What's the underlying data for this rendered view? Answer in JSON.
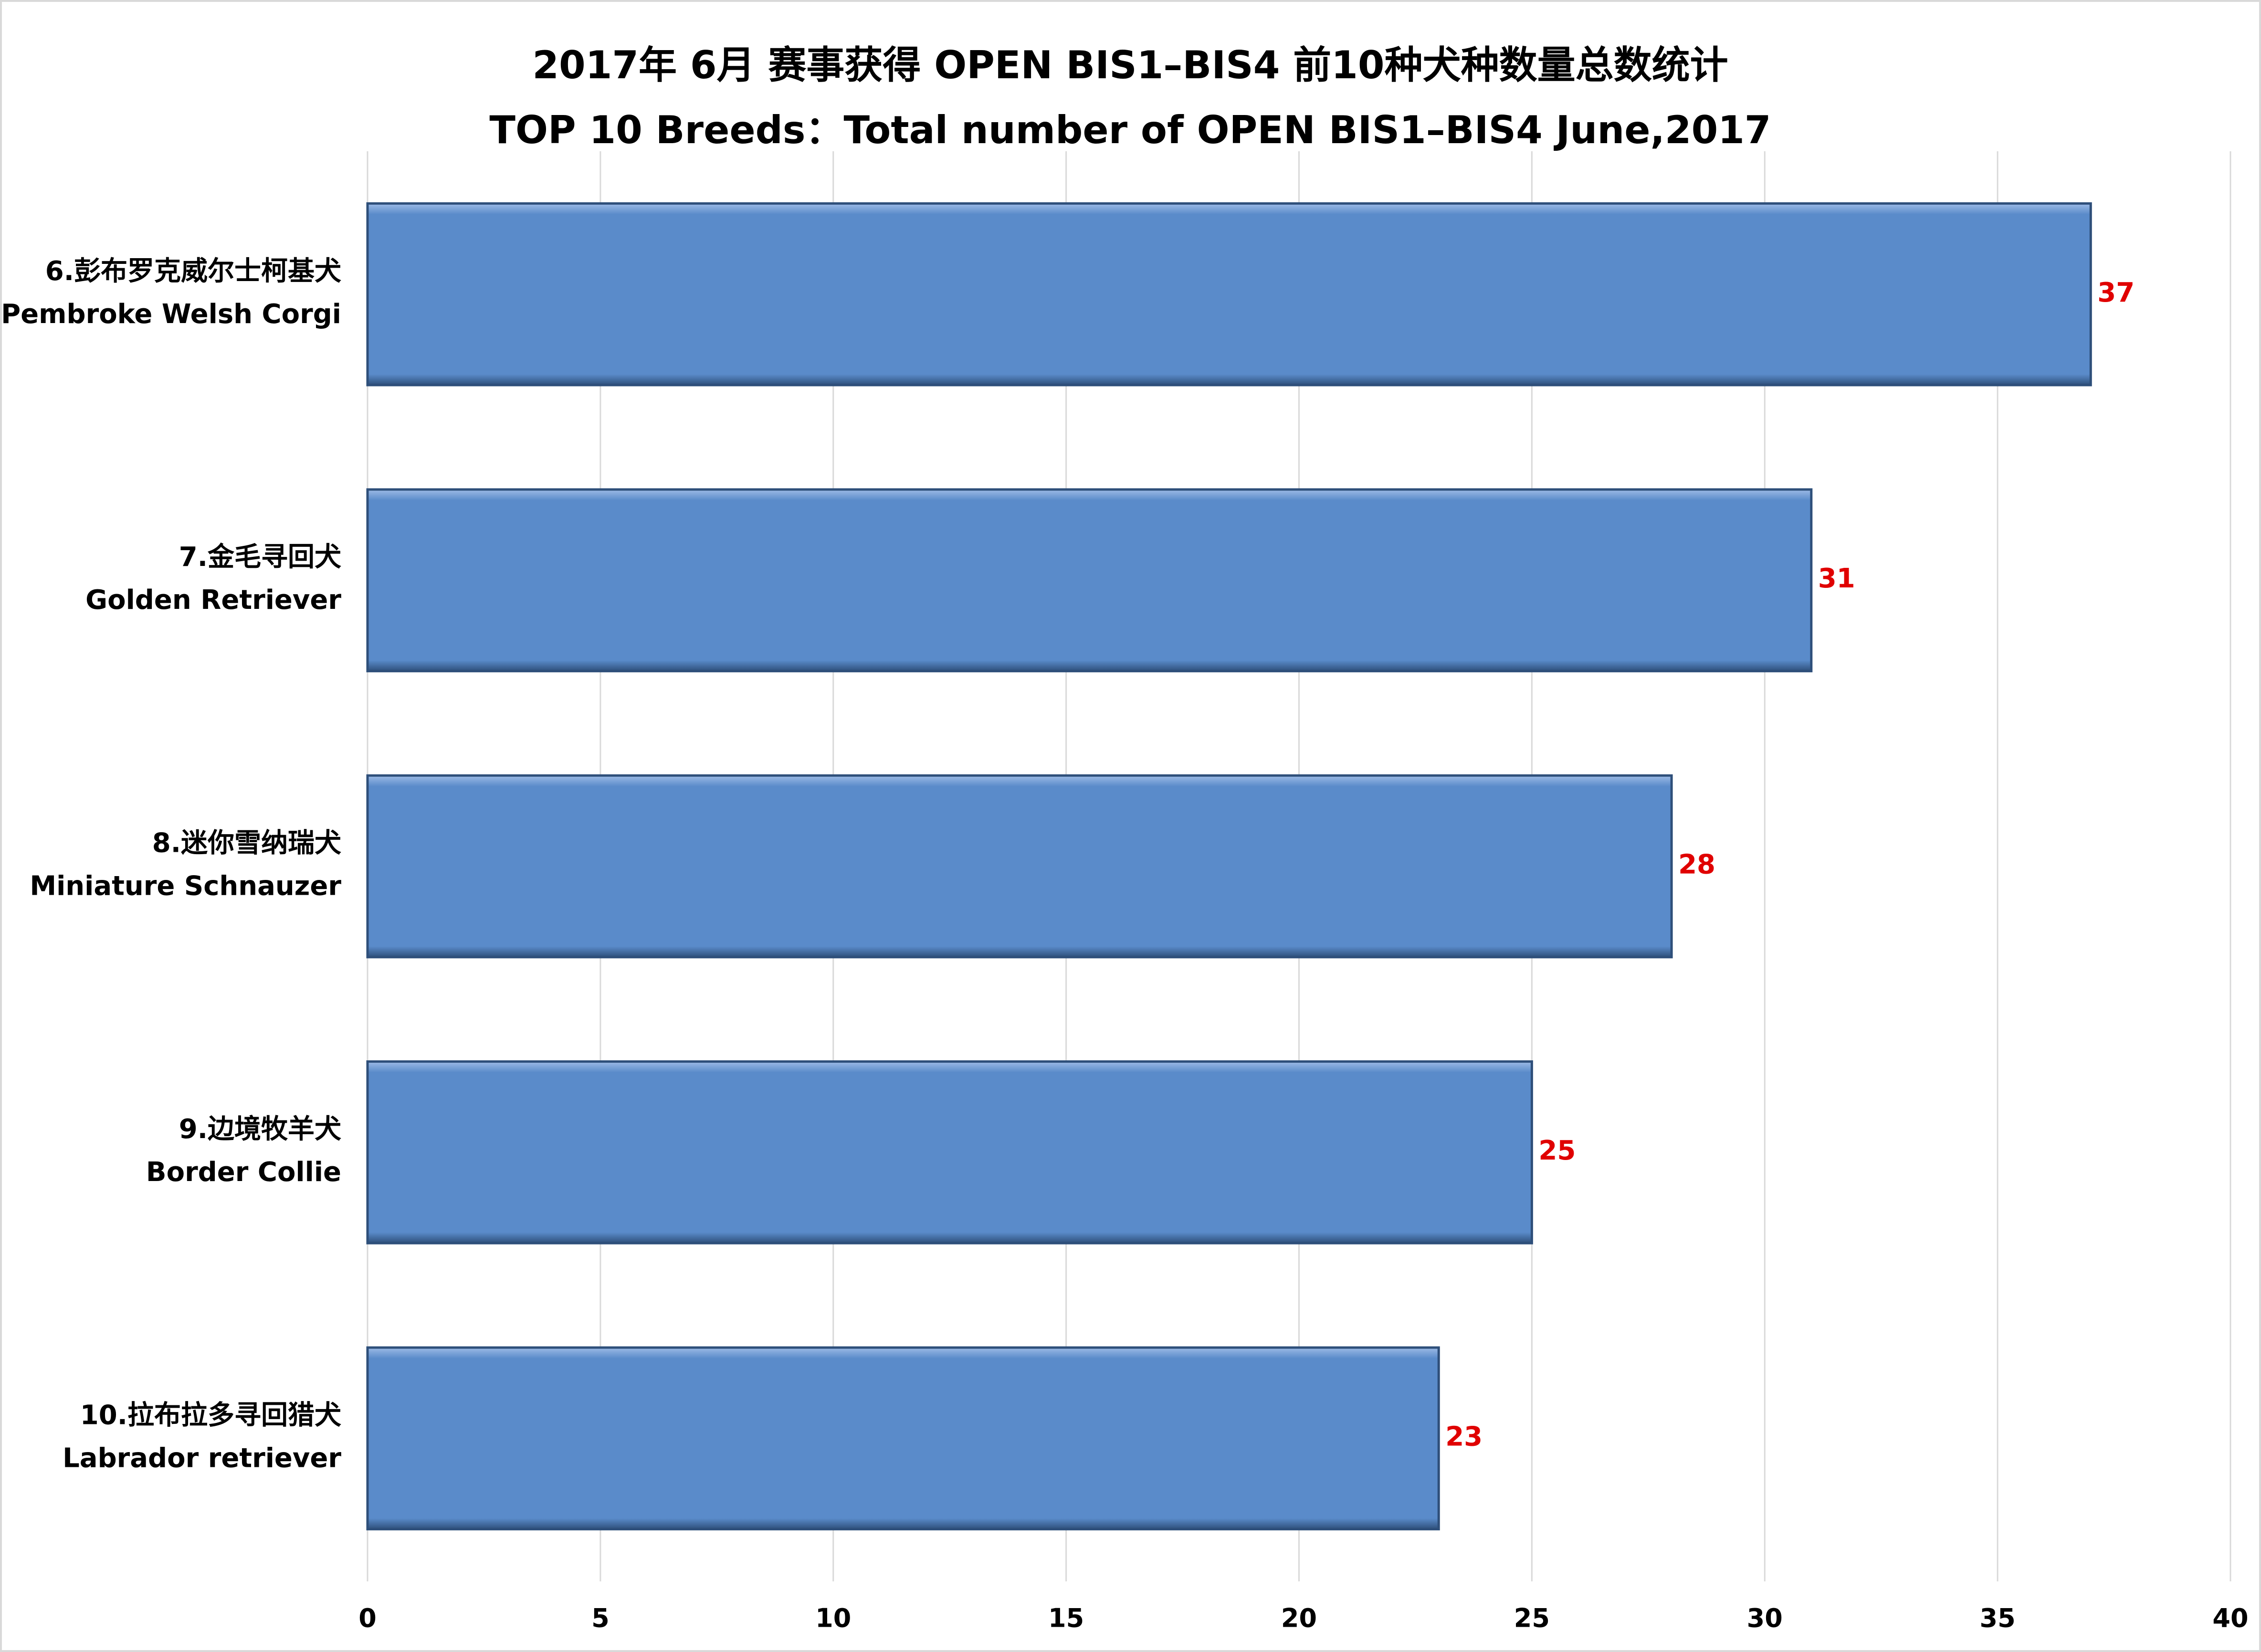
{
  "chart_data": {
    "type": "barh",
    "title": "2017年  6月 赛事获得 OPEN BIS1–BIS4 前10种犬种数量总数统计",
    "subtitle": "TOP 10 Breeds：Total number of OPEN BIS1–BIS4 June,2017",
    "categories": [
      [
        "6.彭布罗克威尔士柯基犬",
        "Pembroke Welsh Corgi"
      ],
      [
        "7.金毛寻回犬",
        "Golden Retriever"
      ],
      [
        "8.迷你雪纳瑞犬",
        "Miniature Schnauzer"
      ],
      [
        "9.边境牧羊犬",
        "Border Collie"
      ],
      [
        "10.拉布拉多寻回猎犬",
        "Labrador retriever"
      ]
    ],
    "values": [
      37,
      31,
      28,
      25,
      23
    ],
    "color": "#5a8bca",
    "label_color": "#e00000",
    "xlim": [
      0,
      40
    ],
    "xticks": [
      0,
      5,
      10,
      15,
      20,
      25,
      30,
      35,
      40
    ],
    "grid": true
  }
}
